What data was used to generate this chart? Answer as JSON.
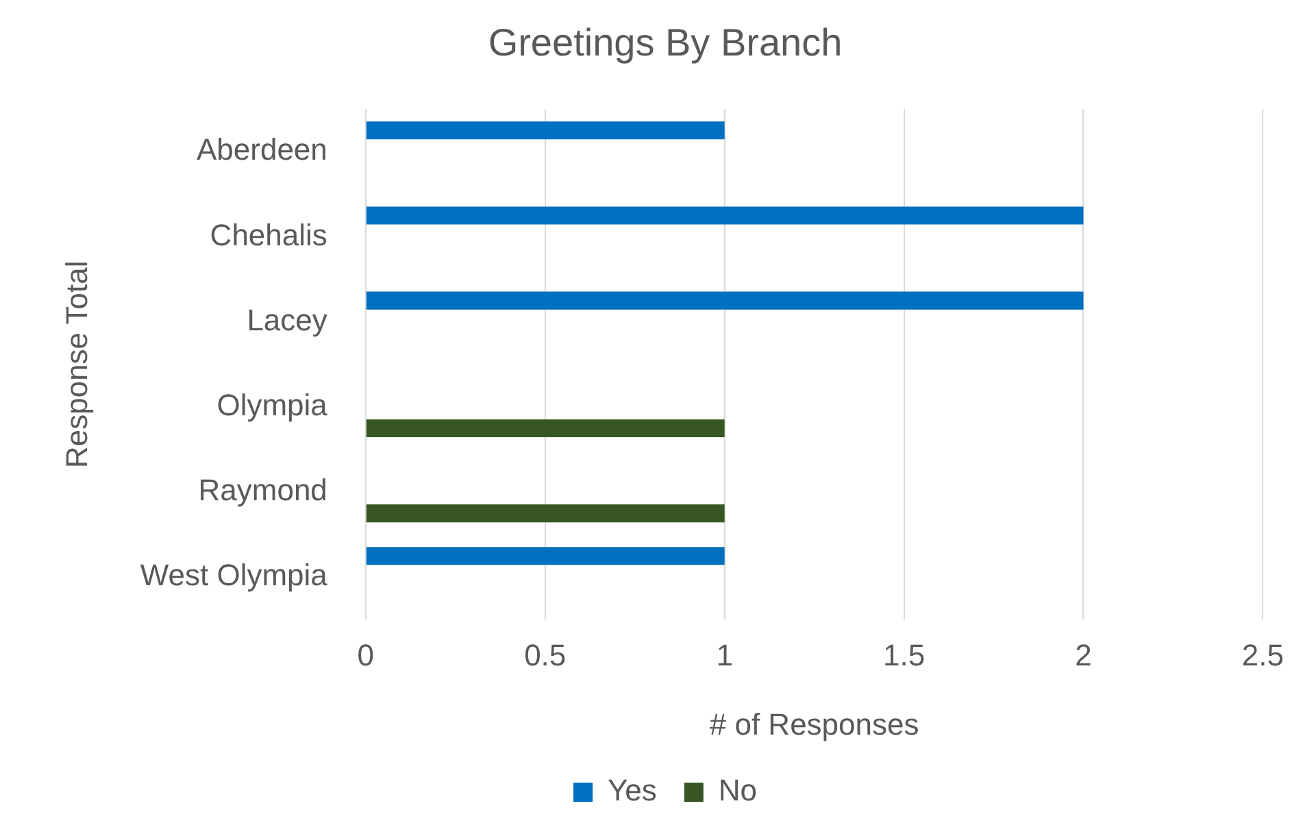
{
  "chart_data": {
    "type": "bar",
    "orientation": "horizontal",
    "title": "Greetings By Branch",
    "xlabel": "# of Responses",
    "ylabel": "Response Total",
    "categories": [
      "Aberdeen",
      "Chehalis",
      "Lacey",
      "Olympia",
      "Raymond",
      "West Olympia"
    ],
    "series": [
      {
        "name": "Yes",
        "color": "#0070c0",
        "values": [
          1,
          2,
          2,
          null,
          null,
          1
        ]
      },
      {
        "name": "No",
        "color": "#375623",
        "values": [
          null,
          null,
          null,
          1,
          1,
          null
        ]
      }
    ],
    "xlim": [
      0,
      2.5
    ],
    "xticks": [
      0,
      0.5,
      1,
      1.5,
      2,
      2.5
    ],
    "grid": "x",
    "legend": "bottom"
  }
}
